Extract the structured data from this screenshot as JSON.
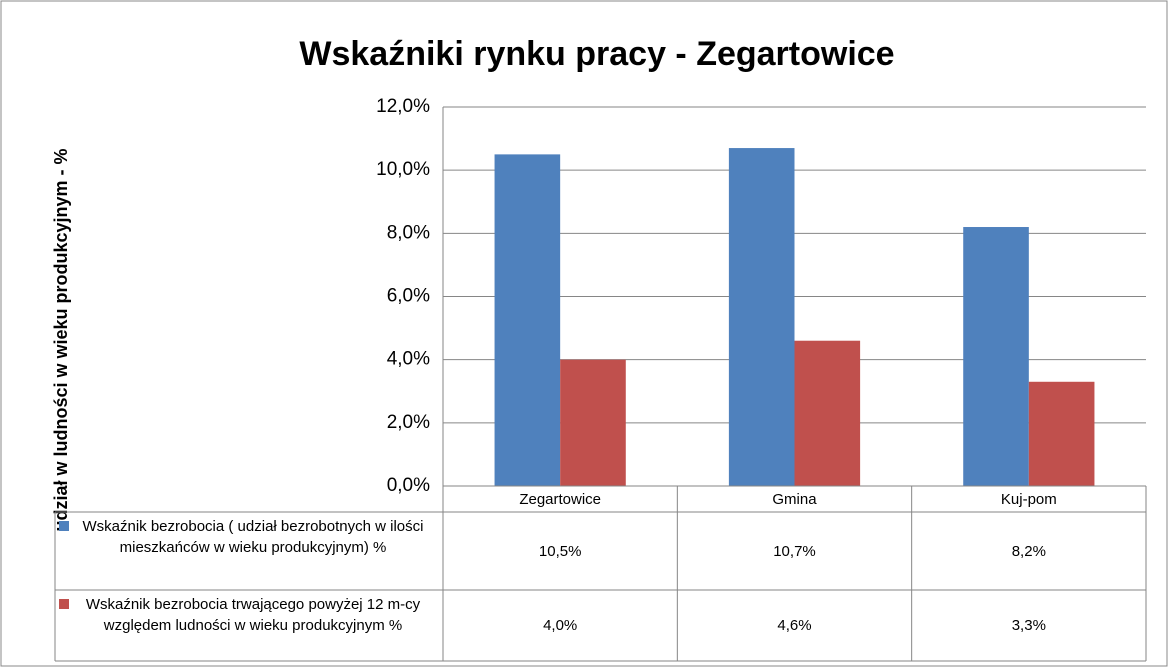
{
  "chart_data": {
    "type": "bar",
    "title": "Wskaźniki rynku pracy - Zegartowice",
    "y_label": "udział w ludności w wieku produkcyjnym - %",
    "categories": [
      "Zegartowice",
      "Gmina",
      "Kuj-pom"
    ],
    "series": [
      {
        "name": "Wskaźnik bezrobocia ( udział bezrobotnych w ilości mieszkańców w wieku produkcyjnym) %",
        "color": "#4f81bd",
        "values": [
          10.5,
          10.7,
          8.2
        ],
        "value_labels": [
          "10,5%",
          "10,7%",
          "8,2%"
        ]
      },
      {
        "name": "Wskaźnik bezrobocia trwającego powyżej 12 m-cy względem ludności w wieku produkcyjnym %",
        "color": "#c0504d",
        "values": [
          4.0,
          4.6,
          3.3
        ],
        "value_labels": [
          "4,0%",
          "4,6%",
          "3,3%"
        ]
      }
    ],
    "ylim": [
      0,
      12
    ],
    "yticks": [
      {
        "value": 0,
        "label": "0,0%"
      },
      {
        "value": 2,
        "label": "2,0%"
      },
      {
        "value": 4,
        "label": "4,0%"
      },
      {
        "value": 6,
        "label": "6,0%"
      },
      {
        "value": 8,
        "label": "8,0%"
      },
      {
        "value": 10,
        "label": "10,0%"
      },
      {
        "value": 12,
        "label": "12,0%"
      }
    ],
    "grid": true,
    "data_table": true
  }
}
